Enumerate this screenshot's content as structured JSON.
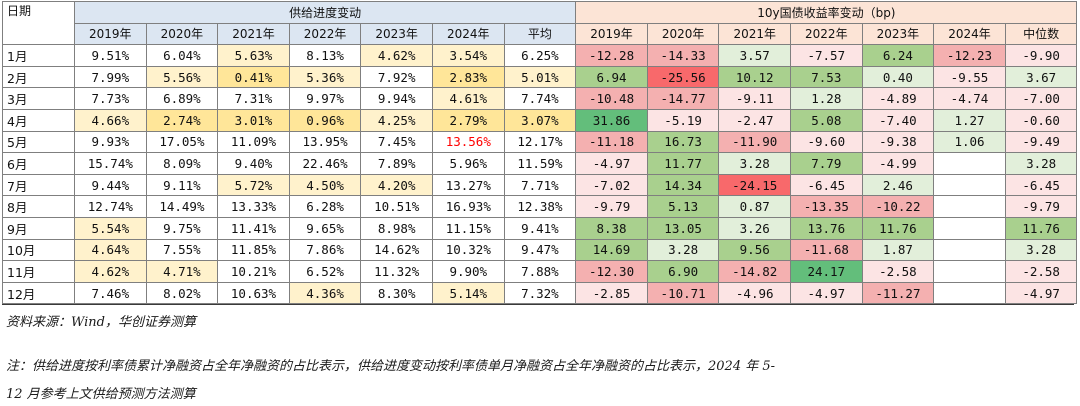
{
  "table": {
    "corner_label": "日期",
    "group_supply": "供给进度变动",
    "group_yield": "10y国债收益率变动（bp)",
    "supply_cols": [
      "2019年",
      "2020年",
      "2021年",
      "2022年",
      "2023年",
      "2024年",
      "平均"
    ],
    "yield_cols": [
      "2019年",
      "2020年",
      "2021年",
      "2022年",
      "2023年",
      "2024年",
      "中位数"
    ],
    "rows": [
      {
        "month": "1月",
        "supply": [
          "9.51%",
          "6.04%",
          "5.63%",
          "8.13%",
          "4.62%",
          "3.54%",
          "6.25%"
        ],
        "yield": [
          "-12.28",
          "-14.33",
          "3.57",
          "-7.57",
          "6.24",
          "-12.23",
          "-9.90"
        ]
      },
      {
        "month": "2月",
        "supply": [
          "7.99%",
          "5.56%",
          "0.41%",
          "5.36%",
          "7.92%",
          "2.83%",
          "5.01%"
        ],
        "yield": [
          "6.94",
          "-25.56",
          "10.12",
          "7.53",
          "0.40",
          "-9.55",
          "3.67"
        ]
      },
      {
        "month": "3月",
        "supply": [
          "7.73%",
          "6.89%",
          "7.31%",
          "9.97%",
          "9.94%",
          "4.61%",
          "7.74%"
        ],
        "yield": [
          "-10.48",
          "-14.77",
          "-9.11",
          "1.28",
          "-4.89",
          "-4.74",
          "-7.00"
        ]
      },
      {
        "month": "4月",
        "supply": [
          "4.66%",
          "2.74%",
          "3.01%",
          "0.96%",
          "4.25%",
          "2.79%",
          "3.07%"
        ],
        "yield": [
          "31.86",
          "-5.19",
          "-2.47",
          "5.08",
          "-7.40",
          "1.27",
          "-0.60"
        ]
      },
      {
        "month": "5月",
        "supply": [
          "9.93%",
          "17.05%",
          "11.09%",
          "13.95%",
          "7.45%",
          "13.56%",
          "12.17%"
        ],
        "yield": [
          "-11.18",
          "16.73",
          "-11.90",
          "-9.60",
          "-9.38",
          "1.06",
          "-9.49"
        ]
      },
      {
        "month": "6月",
        "supply": [
          "15.74%",
          "8.09%",
          "9.40%",
          "22.46%",
          "7.89%",
          "5.96%",
          "11.59%"
        ],
        "yield": [
          "-4.97",
          "11.77",
          "3.28",
          "7.79",
          "-4.99",
          "",
          "3.28"
        ]
      },
      {
        "month": "7月",
        "supply": [
          "9.44%",
          "9.11%",
          "5.72%",
          "4.50%",
          "4.20%",
          "13.27%",
          "7.71%"
        ],
        "yield": [
          "-7.02",
          "14.34",
          "-24.15",
          "-6.45",
          "2.46",
          "",
          "-6.45"
        ]
      },
      {
        "month": "8月",
        "supply": [
          "12.74%",
          "14.49%",
          "13.33%",
          "6.28%",
          "10.51%",
          "16.93%",
          "12.38%"
        ],
        "yield": [
          "-9.79",
          "5.13",
          "0.87",
          "-13.35",
          "-10.22",
          "",
          "-9.79"
        ]
      },
      {
        "month": "9月",
        "supply": [
          "5.54%",
          "9.75%",
          "11.41%",
          "9.65%",
          "8.98%",
          "11.15%",
          "9.41%"
        ],
        "yield": [
          "8.38",
          "13.05",
          "3.26",
          "13.76",
          "11.76",
          "",
          "11.76"
        ]
      },
      {
        "month": "10月",
        "supply": [
          "4.64%",
          "7.55%",
          "11.85%",
          "7.86%",
          "14.62%",
          "10.32%",
          "9.47%"
        ],
        "yield": [
          "14.69",
          "3.28",
          "9.56",
          "-11.68",
          "1.87",
          "",
          "3.28"
        ]
      },
      {
        "month": "11月",
        "supply": [
          "4.62%",
          "4.71%",
          "10.21%",
          "6.52%",
          "11.32%",
          "9.90%",
          "7.88%"
        ],
        "yield": [
          "-12.30",
          "6.90",
          "-14.82",
          "24.17",
          "-2.58",
          "",
          "-2.58"
        ]
      },
      {
        "month": "12月",
        "supply": [
          "7.46%",
          "8.02%",
          "10.63%",
          "4.36%",
          "8.30%",
          "5.14%",
          "7.32%"
        ],
        "yield": [
          "-2.85",
          "-10.71",
          "-4.96",
          "-4.97",
          "-11.27",
          "",
          "-4.97"
        ]
      }
    ],
    "colors": {
      "header_supply": "#dce6f2",
      "header_yield": "#fce4d6",
      "yellow_dark": "#ffe699",
      "yellow_light": "#fff2cc",
      "green_strong": "#63be7b",
      "green_mid": "#a9d08e",
      "green_light": "#e2efda",
      "red_strong": "#f8696b",
      "red_mid": "#f4b0b0",
      "red_light": "#fce4e4",
      "highlight_text": "#ff0000"
    },
    "highlight_cell": {
      "row": 4,
      "col": 5
    }
  },
  "notes": {
    "source": "资料来源：Wind，华创证券测算",
    "note_line1": "注：供给进度按利率债累计净融资占全年净融资的占比表示，供给进度变动按利率债单月净融资占全年净融资的占比表示，2024 年 5-",
    "note_line2": "12 月参考上文供给预测方法测算"
  }
}
